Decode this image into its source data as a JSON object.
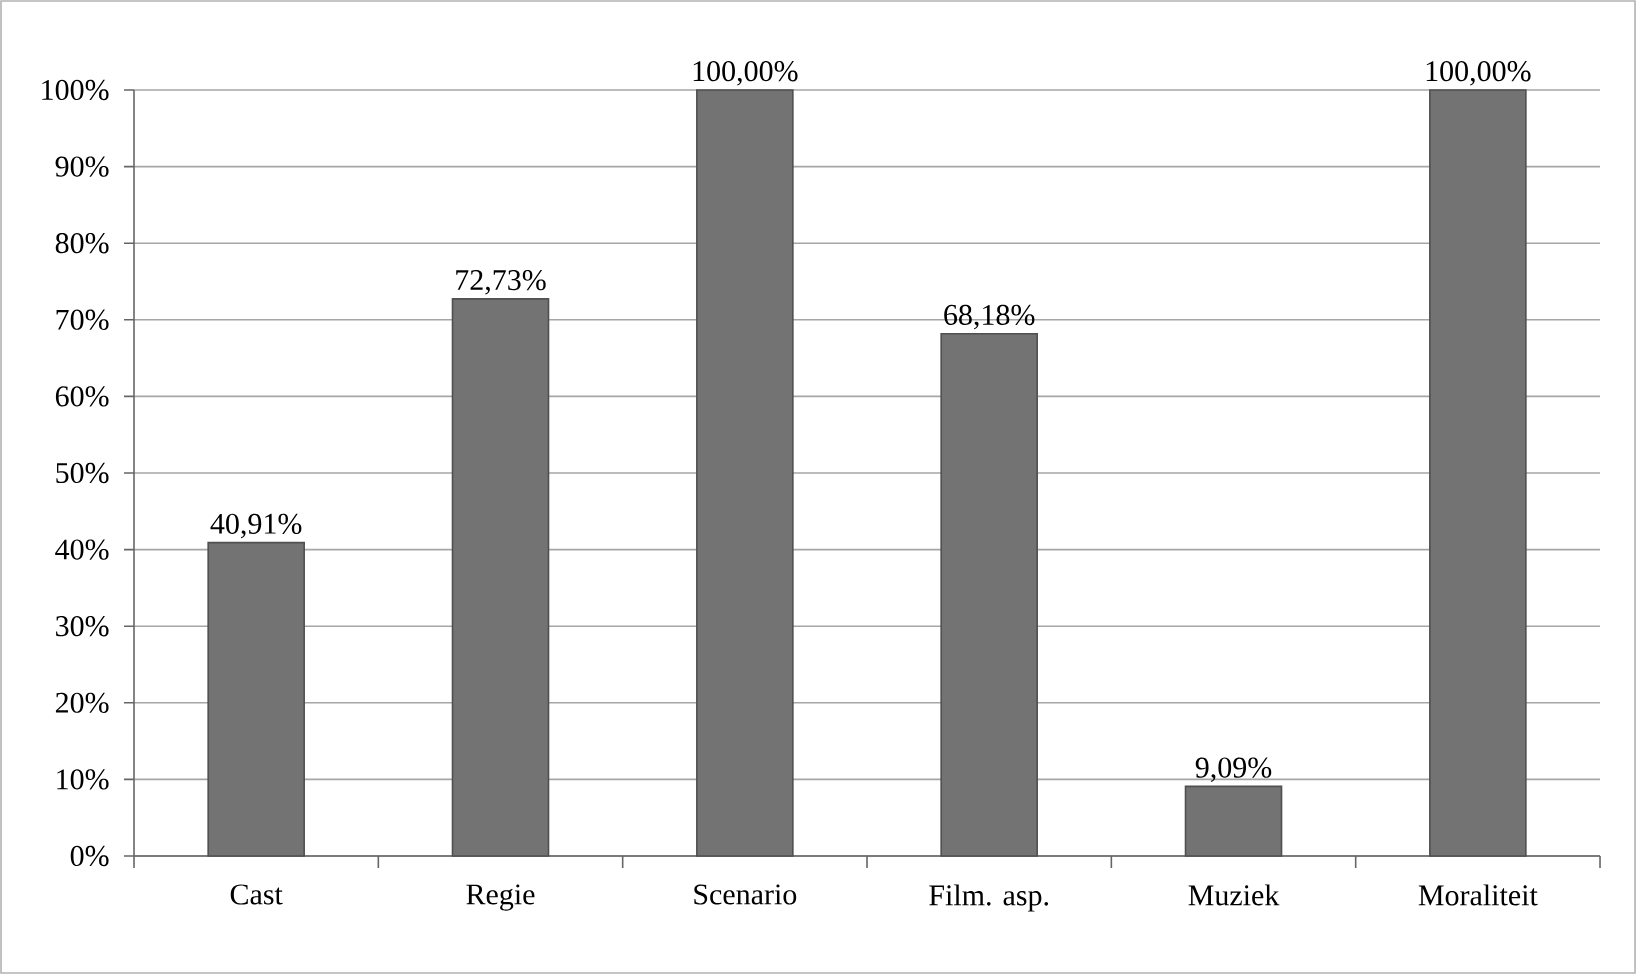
{
  "chart_data": {
    "type": "bar",
    "categories": [
      "Cast",
      "Regie",
      "Scenario",
      "Film. asp.",
      "Muziek",
      "Moraliteit"
    ],
    "values": [
      40.91,
      72.73,
      100,
      68.18,
      9.09,
      100
    ],
    "value_labels": [
      "40,91%",
      "72,73%",
      "100,00%",
      "68,18%",
      "9,09%",
      "100,00%"
    ],
    "color": "#737373",
    "ylim": [
      0,
      100
    ],
    "yticks": [
      {
        "value": 0,
        "label": "0%"
      },
      {
        "value": 10,
        "label": "10%"
      },
      {
        "value": 20,
        "label": "20%"
      },
      {
        "value": 30,
        "label": "30%"
      },
      {
        "value": 40,
        "label": "40%"
      },
      {
        "value": 50,
        "label": "50%"
      },
      {
        "value": 60,
        "label": "60%"
      },
      {
        "value": 70,
        "label": "70%"
      },
      {
        "value": 80,
        "label": "80%"
      },
      {
        "value": 90,
        "label": "90%"
      },
      {
        "value": 100,
        "label": "100%"
      }
    ],
    "grid": "y"
  }
}
